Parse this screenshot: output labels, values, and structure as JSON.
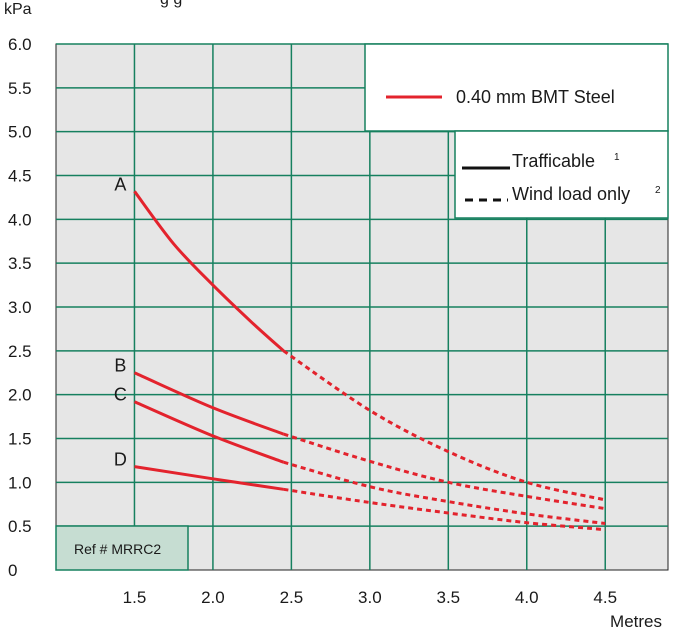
{
  "chart_data": {
    "type": "line",
    "ylabel": "kPa",
    "xlabel": "Metres",
    "title_fragment": "g  g",
    "x_ticks": [
      "1.5",
      "2.0",
      "2.5",
      "3.0",
      "3.5",
      "4.0",
      "4.5"
    ],
    "y_ticks": [
      "0",
      "0.5",
      "1.0",
      "1.5",
      "2.0",
      "2.5",
      "3.0",
      "3.5",
      "4.0",
      "4.5",
      "5.0",
      "5.5",
      "6.0"
    ],
    "xlim": [
      1.0,
      4.9
    ],
    "ylim": [
      0,
      6.0
    ],
    "grid": true,
    "legend": {
      "steel_label": "0.40 mm BMT Steel",
      "trafficable_label": "Trafficable",
      "trafficable_sup": "1",
      "wind_label": "Wind load only",
      "wind_sup": "2"
    },
    "ref_label": "Ref # MRRC2",
    "series": [
      {
        "name": "A",
        "trafficable": {
          "x": [
            1.5,
            1.75,
            2.0,
            2.25,
            2.45
          ],
          "y": [
            4.32,
            3.72,
            3.25,
            2.82,
            2.5
          ]
        },
        "wind": {
          "x": [
            2.45,
            3.0,
            3.5,
            4.0,
            4.5
          ],
          "y": [
            2.5,
            1.82,
            1.35,
            1.0,
            0.8
          ]
        }
      },
      {
        "name": "B",
        "trafficable": {
          "x": [
            1.5,
            2.0,
            2.45
          ],
          "y": [
            2.25,
            1.85,
            1.55
          ]
        },
        "wind": {
          "x": [
            2.45,
            3.0,
            3.5,
            4.0,
            4.5
          ],
          "y": [
            1.55,
            1.24,
            1.0,
            0.84,
            0.7
          ]
        }
      },
      {
        "name": "C",
        "trafficable": {
          "x": [
            1.5,
            2.0,
            2.45
          ],
          "y": [
            1.92,
            1.53,
            1.23
          ]
        },
        "wind": {
          "x": [
            2.45,
            3.0,
            3.5,
            4.0,
            4.5
          ],
          "y": [
            1.23,
            0.95,
            0.78,
            0.64,
            0.53
          ]
        }
      },
      {
        "name": "D",
        "trafficable": {
          "x": [
            1.5,
            2.0,
            2.45
          ],
          "y": [
            1.18,
            1.04,
            0.92
          ]
        },
        "wind": {
          "x": [
            2.45,
            3.0,
            3.5,
            4.0,
            4.5
          ],
          "y": [
            0.92,
            0.77,
            0.65,
            0.54,
            0.46
          ]
        }
      }
    ],
    "colors": {
      "background": "#e6e6e6",
      "grid": "#16805f",
      "curve": "#e3232d",
      "ref_box": "#c6ddd2"
    }
  }
}
